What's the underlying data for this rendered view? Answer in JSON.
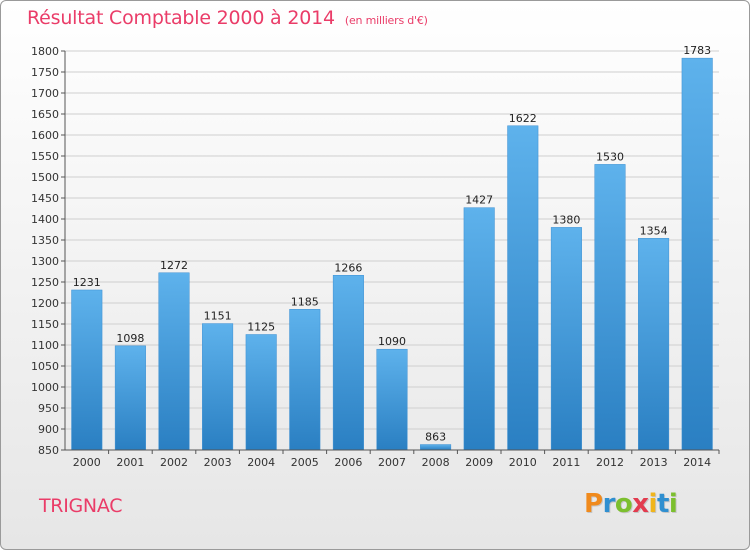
{
  "title": "Résultat Comptable 2000 à 2014",
  "unit_note": "(en milliers d'€)",
  "commune": "TRIGNAC",
  "logo": {
    "text": "Proxiti",
    "letters": [
      {
        "ch": "P",
        "color": "#f08a1c"
      },
      {
        "ch": "r",
        "color": "#2f8fd0"
      },
      {
        "ch": "o",
        "color": "#7cbf2e"
      },
      {
        "ch": "x",
        "color": "#e23b4e"
      },
      {
        "ch": "i",
        "color": "#f0b51c"
      },
      {
        "ch": "t",
        "color": "#2f8fd0"
      },
      {
        "ch": "i",
        "color": "#7cbf2e"
      }
    ]
  },
  "colors": {
    "title": "#ea3c68",
    "bar_top": "#5eb2ec",
    "bar_bottom": "#2a7fc2",
    "grid": "#cfcfcf"
  },
  "chart_data": {
    "type": "bar",
    "title": "Résultat Comptable 2000 à 2014",
    "subtitle": "(en milliers d'€)",
    "categories": [
      "2000",
      "2001",
      "2002",
      "2003",
      "2004",
      "2005",
      "2006",
      "2007",
      "2008",
      "2009",
      "2010",
      "2011",
      "2012",
      "2013",
      "2014"
    ],
    "values": [
      1231,
      1098,
      1272,
      1151,
      1125,
      1185,
      1266,
      1090,
      863,
      1427,
      1622,
      1380,
      1530,
      1354,
      1783
    ],
    "ylim": [
      850,
      1800
    ],
    "yticks": [
      850,
      900,
      950,
      1000,
      1050,
      1100,
      1150,
      1200,
      1250,
      1300,
      1350,
      1400,
      1450,
      1500,
      1550,
      1600,
      1650,
      1700,
      1750,
      1800
    ],
    "grid": true,
    "xlabel": "",
    "ylabel": ""
  }
}
